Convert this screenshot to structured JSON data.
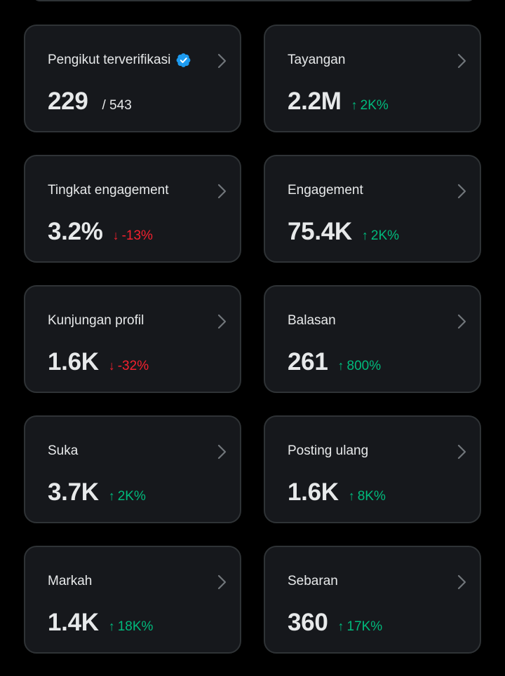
{
  "colors": {
    "background": "#000000",
    "card": "#16181c",
    "border": "#2f3336",
    "text": "#e7e9ea",
    "up": "#00ba7c",
    "down": "#f4212e",
    "verified": "#1d9bf0"
  },
  "cards": [
    {
      "title": "Pengikut terverifikasi",
      "value": "229",
      "sub": "/ 543",
      "verified": true
    },
    {
      "title": "Tayangan",
      "value": "2.2M",
      "change": "2K%",
      "direction": "up"
    },
    {
      "title": "Tingkat engagement",
      "value": "3.2%",
      "change": "-13%",
      "direction": "down"
    },
    {
      "title": "Engagement",
      "value": "75.4K",
      "change": "2K%",
      "direction": "up"
    },
    {
      "title": "Kunjungan profil",
      "value": "1.6K",
      "change": "-32%",
      "direction": "down"
    },
    {
      "title": "Balasan",
      "value": "261",
      "change": "800%",
      "direction": "up"
    },
    {
      "title": "Suka",
      "value": "3.7K",
      "change": "2K%",
      "direction": "up"
    },
    {
      "title": "Posting ulang",
      "value": "1.6K",
      "change": "8K%",
      "direction": "up"
    },
    {
      "title": "Markah",
      "value": "1.4K",
      "change": "18K%",
      "direction": "up"
    },
    {
      "title": "Sebaran",
      "value": "360",
      "change": "17K%",
      "direction": "up"
    }
  ],
  "icons": {
    "verified": "verified-badge-icon",
    "chevron": "chevron-right-icon",
    "up": "arrow-up-icon",
    "down": "arrow-down-icon"
  },
  "arrows": {
    "up": "↑",
    "down": "↓"
  }
}
